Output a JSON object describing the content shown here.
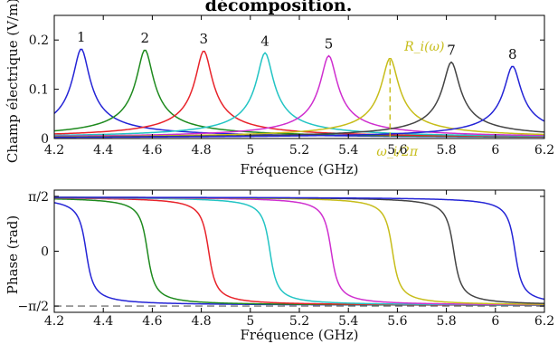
{
  "title": "décomposition.",
  "chart_data": [
    {
      "type": "line",
      "xlabel": "Fréquence (GHz)",
      "ylabel": "Champ électrique (V/m)",
      "xlim": [
        4.2,
        6.2
      ],
      "ylim": [
        0,
        0.25
      ],
      "xticks": [
        "4.2",
        "4.4",
        "4.6",
        "4.8",
        "5",
        "5.2",
        "5.4",
        "5.6",
        "5.8",
        "6",
        "6.2"
      ],
      "yticks": [
        "0",
        "0.1",
        "0.2"
      ],
      "grid": false,
      "series": [
        {
          "label": "1",
          "peak_freq": 4.31,
          "peak_value": 0.182,
          "color": "#2424d6"
        },
        {
          "label": "2",
          "peak_freq": 4.57,
          "peak_value": 0.18,
          "color": "#1e8a1e"
        },
        {
          "label": "3",
          "peak_freq": 4.81,
          "peak_value": 0.178,
          "color": "#e8232a"
        },
        {
          "label": "4",
          "peak_freq": 5.06,
          "peak_value": 0.174,
          "color": "#22c4c4"
        },
        {
          "label": "5",
          "peak_freq": 5.32,
          "peak_value": 0.168,
          "color": "#cf2fcf"
        },
        {
          "label": "",
          "peak_freq": 5.57,
          "peak_value": 0.163,
          "color": "#c7bd1a"
        },
        {
          "label": "7",
          "peak_freq": 5.82,
          "peak_value": 0.155,
          "color": "#444444"
        },
        {
          "label": "8",
          "peak_freq": 6.07,
          "peak_value": 0.147,
          "color": "#2424d6"
        }
      ],
      "annotations": {
        "amplitude_label": "R_i(ω)",
        "frequency_label": "ω_i/2π",
        "marker_freq": 5.57,
        "color": "#c7bd1a"
      }
    },
    {
      "type": "line",
      "xlabel": "Fréquence (GHz)",
      "ylabel": "Phase (rad)",
      "xlim": [
        4.2,
        6.2
      ],
      "ylim": [
        -1.75,
        1.75
      ],
      "xticks": [
        "4.2",
        "4.4",
        "4.6",
        "4.8",
        "5",
        "5.2",
        "5.4",
        "5.6",
        "5.8",
        "6",
        "6.2"
      ],
      "yticks": [
        {
          "value": 1.5708,
          "label": "π/2"
        },
        {
          "value": 0,
          "label": "0"
        },
        {
          "value": -1.5708,
          "label": "−π/2"
        }
      ],
      "reference_line": {
        "value": -1.5708,
        "style": "dashed",
        "color": "#777777"
      },
      "series": [
        {
          "transition_freq": 4.33,
          "color": "#2424d6"
        },
        {
          "transition_freq": 4.58,
          "color": "#1e8a1e"
        },
        {
          "transition_freq": 4.83,
          "color": "#e8232a"
        },
        {
          "transition_freq": 5.08,
          "color": "#22c4c4"
        },
        {
          "transition_freq": 5.33,
          "color": "#cf2fcf"
        },
        {
          "transition_freq": 5.58,
          "color": "#c7bd1a"
        },
        {
          "transition_freq": 5.83,
          "color": "#444444"
        },
        {
          "transition_freq": 6.08,
          "color": "#2424d6"
        }
      ]
    }
  ]
}
